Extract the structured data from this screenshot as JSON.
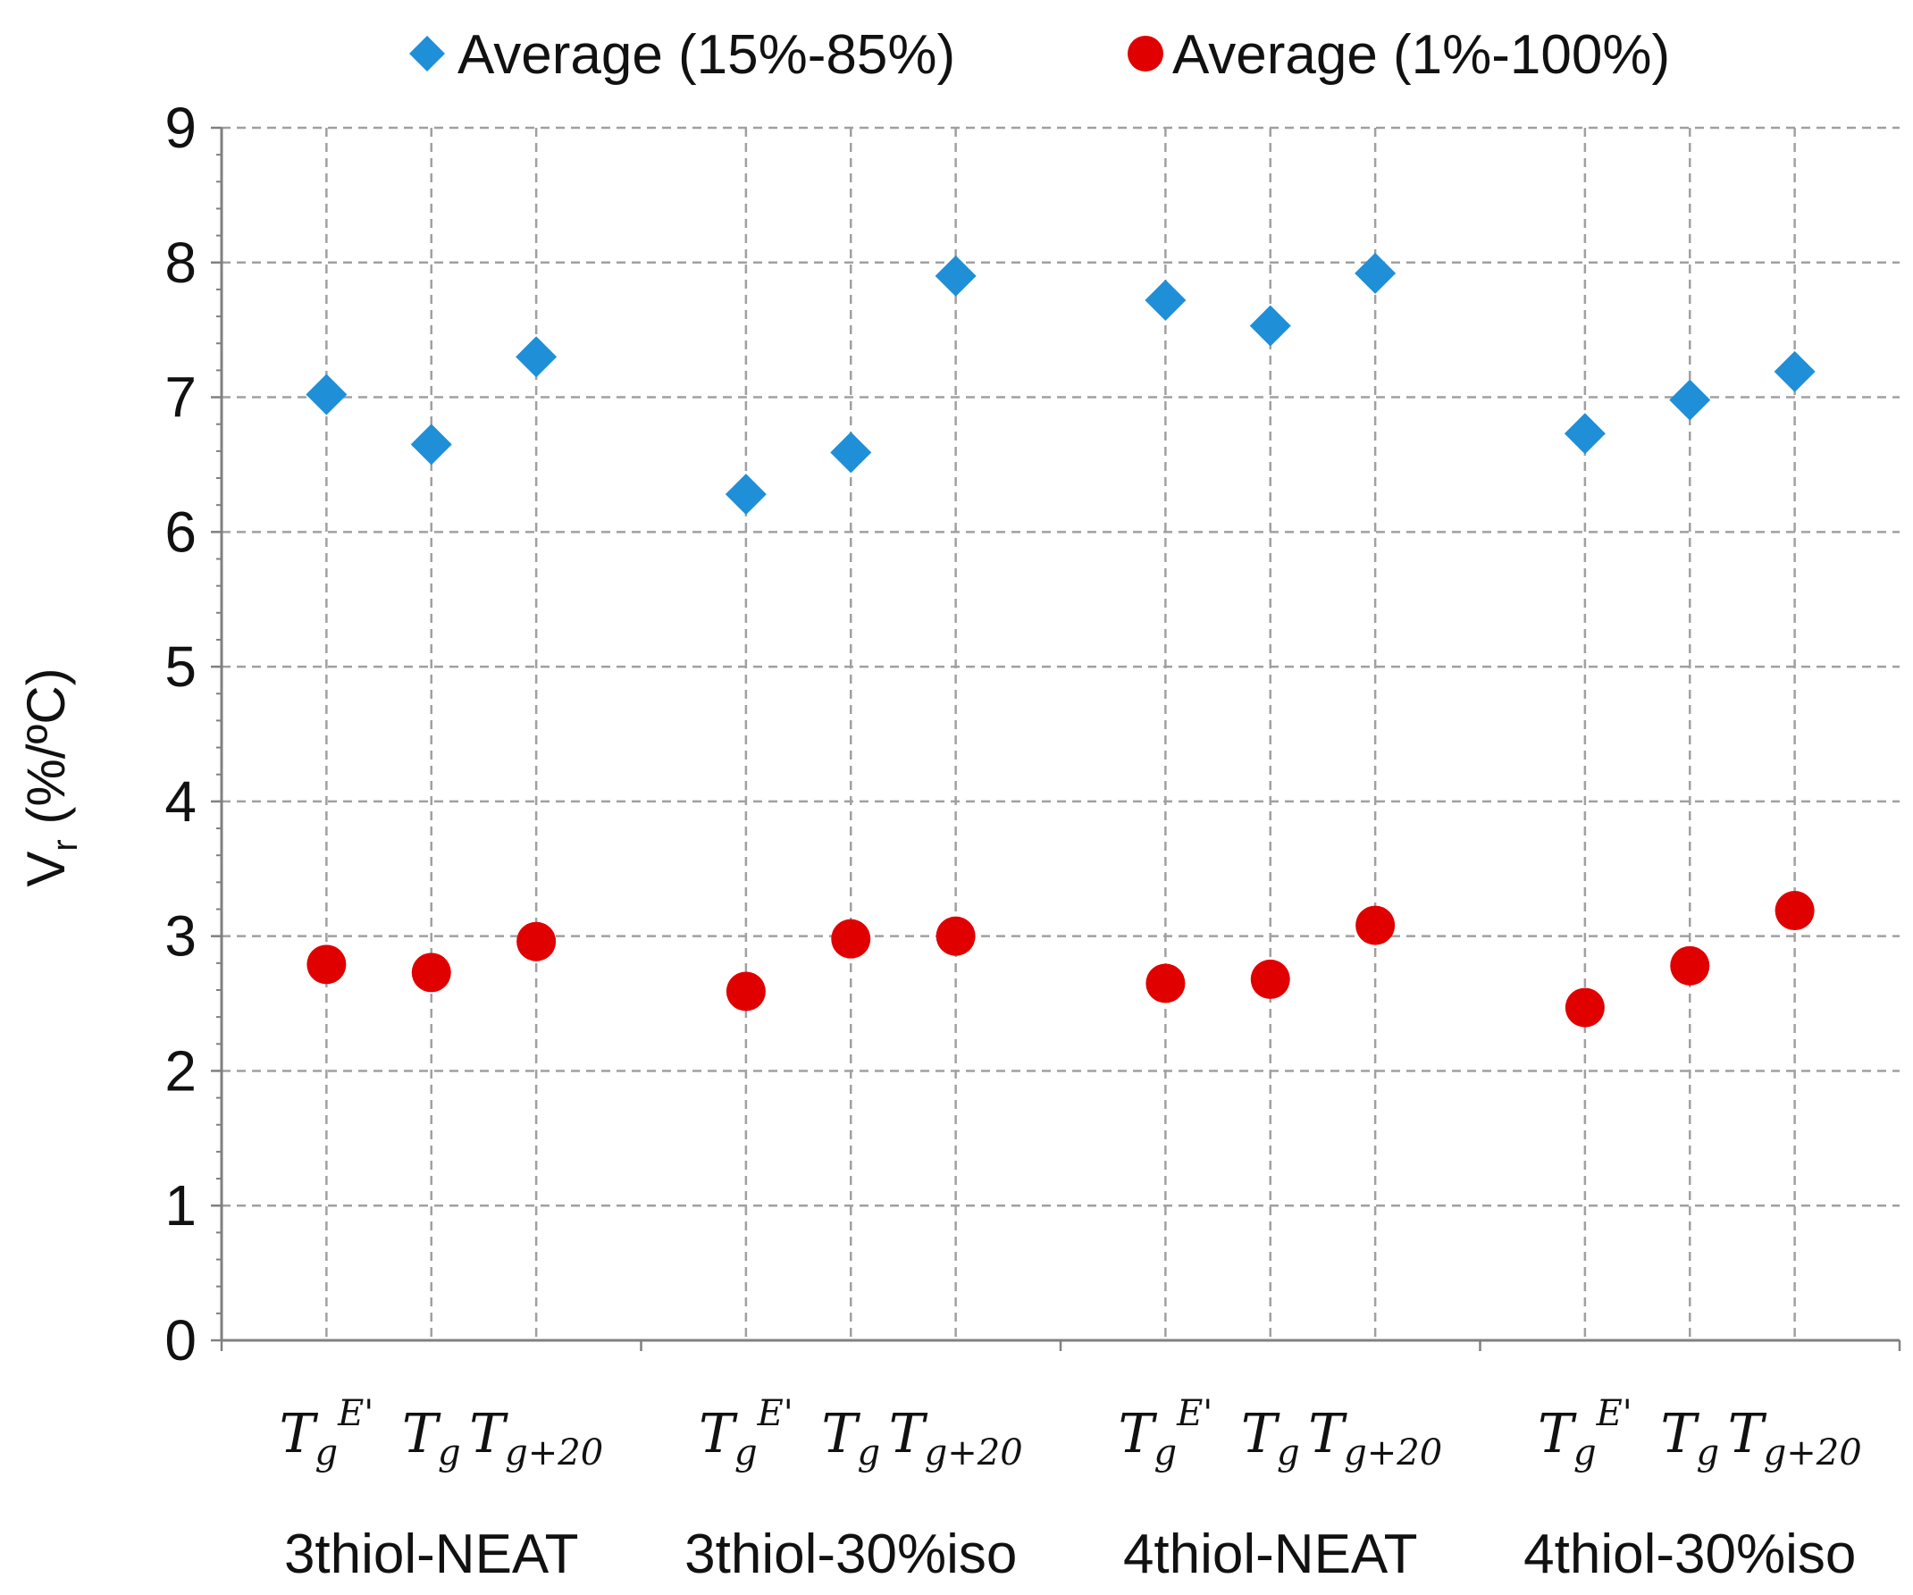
{
  "chart_data": {
    "type": "scatter",
    "ylabel": "V",
    "ylabel_sub": "r",
    "ylabel_unit": "(%/ºC)",
    "ylim": [
      0,
      9
    ],
    "yticks": [
      "0",
      "1",
      "2",
      "3",
      "4",
      "5",
      "6",
      "7",
      "8",
      "9"
    ],
    "grid": true,
    "legend_position": "top",
    "groups": [
      "3thiol-NEAT",
      "3thiol-30%iso",
      "4thiol-NEAT",
      "4thiol-30%iso"
    ],
    "conditions": [
      {
        "base": "T",
        "sub": "g",
        "sup": "E'"
      },
      {
        "base": "T",
        "sub": "g",
        "sup": ""
      },
      {
        "base": "T",
        "sub": "g+20",
        "sup": ""
      }
    ],
    "series": [
      {
        "name": "Average (15%-85%)",
        "marker": "diamond",
        "color": "#1f8fd8",
        "values": [
          7.02,
          6.65,
          7.3,
          6.28,
          6.59,
          7.9,
          7.72,
          7.53,
          7.92,
          6.73,
          6.98,
          7.19
        ]
      },
      {
        "name": "Average (1%-100%)",
        "marker": "circle",
        "color": "#e00000",
        "values": [
          2.79,
          2.73,
          2.96,
          2.59,
          2.98,
          3.0,
          2.65,
          2.68,
          3.08,
          2.47,
          2.78,
          3.19
        ]
      }
    ]
  }
}
